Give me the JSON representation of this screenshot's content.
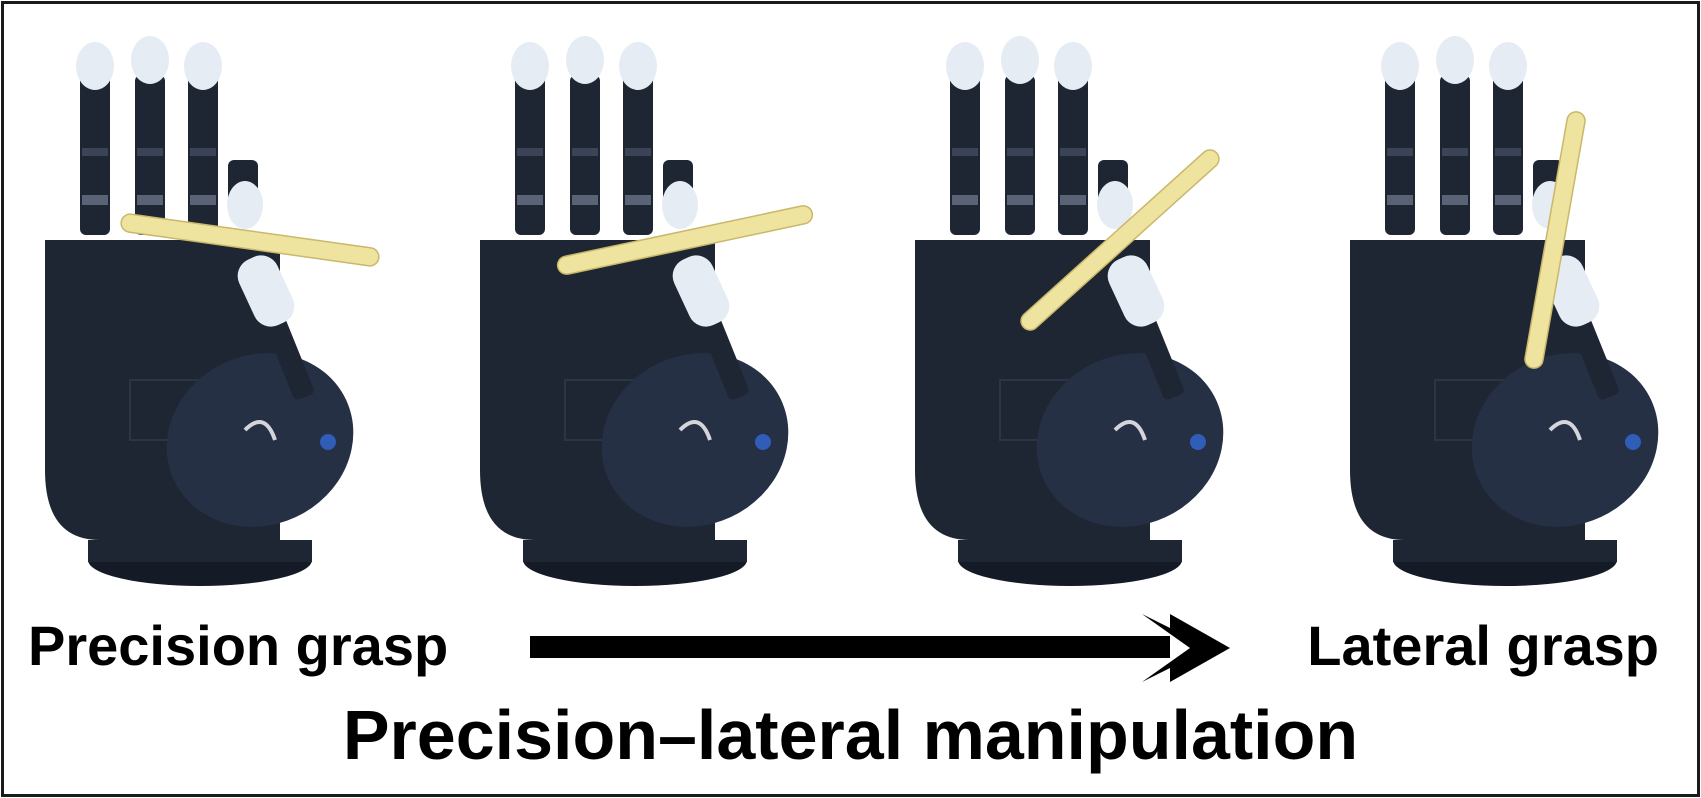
{
  "labels": {
    "start": "Precision grasp",
    "end": "Lateral grasp",
    "caption": "Precision–lateral manipulation"
  },
  "colors": {
    "hand": "#1f2633",
    "hand_shadow": "#151b26",
    "fingertip": "#e6ecf3",
    "rod": "#efe3a0",
    "rod_edge": "#c9b86a",
    "text": "#000000",
    "background": "#ffffff"
  },
  "icons": {
    "arrow": "right-arrow-icon"
  },
  "frames": [
    {
      "name": "hand-frame-1",
      "rod_angle_deg": 8
    },
    {
      "name": "hand-frame-2",
      "rod_angle_deg": -12
    },
    {
      "name": "hand-frame-3",
      "rod_angle_deg": -42
    },
    {
      "name": "hand-frame-4",
      "rod_angle_deg": -80
    }
  ]
}
